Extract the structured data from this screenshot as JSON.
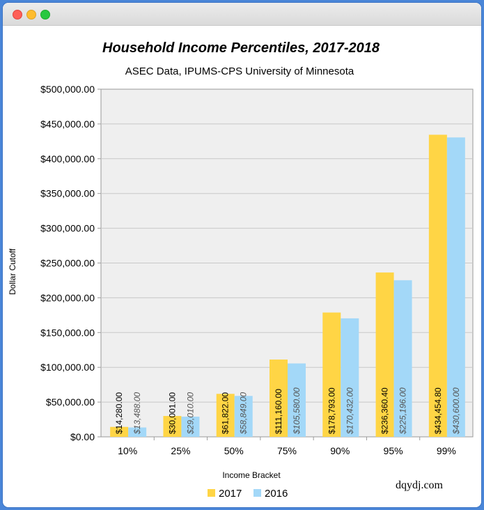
{
  "window": {
    "controls": [
      "close",
      "minimize",
      "zoom"
    ]
  },
  "chart_data": {
    "type": "bar",
    "title": "Household Income Percentiles, 2017-2018",
    "subtitle": "ASEC Data, IPUMS-CPS University of Minnesota",
    "xlabel": "Income Bracket",
    "ylabel": "Dollar Cutoff",
    "categories": [
      "10%",
      "25%",
      "50%",
      "75%",
      "90%",
      "95%",
      "99%"
    ],
    "ylim": [
      0,
      500000
    ],
    "yticks": [
      0,
      50000,
      100000,
      150000,
      200000,
      250000,
      300000,
      350000,
      400000,
      450000,
      500000
    ],
    "ytick_labels": [
      "$0.00",
      "$50,000.00",
      "$100,000.00",
      "$150,000.00",
      "$200,000.00",
      "$250,000.00",
      "$300,000.00",
      "$350,000.00",
      "$400,000.00",
      "$450,000.00",
      "$500,000.00"
    ],
    "grid": true,
    "legend_position": "bottom",
    "series": [
      {
        "name": "2017",
        "color": "#ffd545",
        "values": [
          14280,
          30001,
          61822,
          111160,
          178793,
          236360.4,
          434454.8
        ],
        "labels": [
          "$14,280.00",
          "$30,001.00",
          "$61,822.00",
          "$111,160.00",
          "$178,793.00",
          "$236,360.40",
          "$434,454.80"
        ]
      },
      {
        "name": "2016",
        "color": "#a3d8f8",
        "values": [
          13488,
          29010,
          58849,
          105580,
          170432,
          225196,
          430600
        ],
        "labels": [
          "$13,488.00",
          "$29,010.00",
          "$58,849.00",
          "$105,580.00",
          "$170,432.00",
          "$225,196.00",
          "$430,600.00"
        ]
      }
    ],
    "watermark": "dqydj.com"
  }
}
